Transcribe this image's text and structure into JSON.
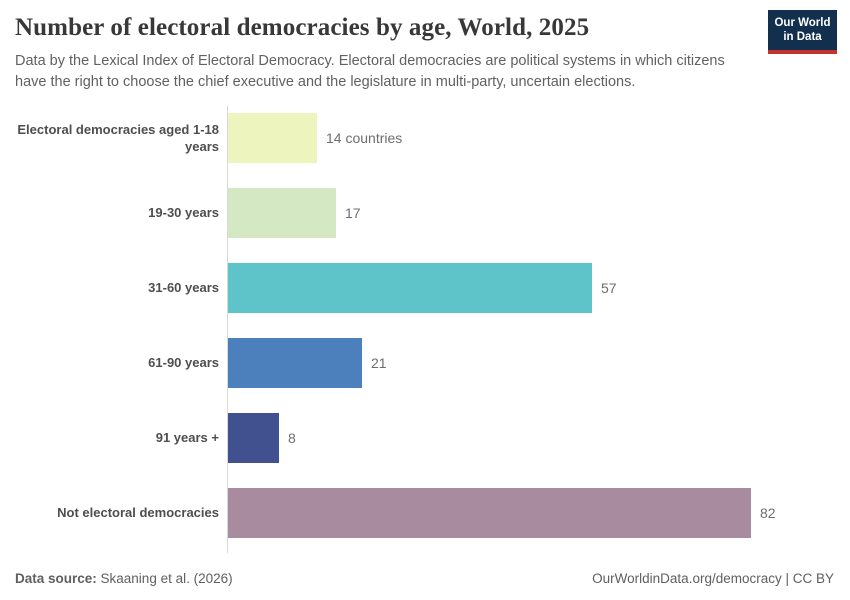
{
  "header": {
    "title": "Number of electoral democracies by age, World, 2025",
    "subtitle": "Data by the Lexical Index of Electoral Democracy. Electoral democracies are political systems in which citizens have the right to choose the chief executive and the legislature in multi-party, uncertain elections.",
    "logo": {
      "line1": "Our World",
      "line2": "in Data",
      "bg_color": "#12304e",
      "stripe_color": "#c0352f"
    }
  },
  "chart_data": {
    "type": "bar",
    "orientation": "horizontal",
    "title": "Number of electoral democracies by age, World, 2025",
    "categories": [
      "Electoral democracies aged 1-18 years",
      "19-30 years",
      "31-60 years",
      "61-90 years",
      "91 years +",
      "Not electoral democracies"
    ],
    "values": [
      14,
      17,
      57,
      21,
      8,
      82
    ],
    "value_labels": [
      "14 countries",
      "17",
      "57",
      "21",
      "8",
      "82"
    ],
    "bar_colors": [
      "#edf4bd",
      "#d3e8c3",
      "#5fc3ca",
      "#4c80bd",
      "#41508e",
      "#a98ba0"
    ],
    "unit": "countries",
    "xlim": [
      0,
      82
    ],
    "grid": false,
    "legend": false
  },
  "footer": {
    "source_label": "Data source:",
    "source_value": " Skaaning et al. (2026)",
    "link": "OurWorldinData.org/democracy | CC BY"
  }
}
